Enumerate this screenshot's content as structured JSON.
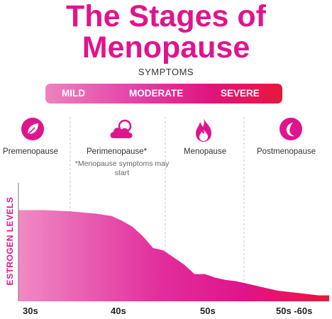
{
  "title_line1": "The Stages of",
  "title_line2": "Menopause",
  "symptoms": {
    "label": "SYMPTOMS",
    "levels": [
      "MILD",
      "MODERATE",
      "SEVERE"
    ]
  },
  "stages": [
    {
      "name": "Premenopause",
      "icon": "leaf-icon"
    },
    {
      "name": "Perimenopause*",
      "icon": "cloud-sun-icon",
      "note": "*Menopause symptoms may start"
    },
    {
      "name": "Menopause",
      "icon": "flame-icon"
    },
    {
      "name": "Postmenopause",
      "icon": "moon-icon"
    }
  ],
  "colors": {
    "accent": "#e0148c",
    "light_pink": "#ef82be",
    "red": "#e8173c"
  },
  "chart_data": {
    "type": "area",
    "ylabel": "ESTROGEN LEVELS",
    "xlabel": "",
    "x_ticks": [
      "30s",
      "40s",
      "50s",
      "50s -60s"
    ],
    "x": [
      0,
      0.5,
      1,
      1.5,
      1.8,
      2,
      2.2,
      2.4,
      2.6,
      2.8,
      3,
      3.2,
      3.4,
      3.6,
      3.8,
      4,
      4.2,
      4.4,
      4.6,
      4.8,
      5,
      5.2,
      5.4,
      5.6,
      5.8,
      6
    ],
    "values": [
      77,
      77,
      76,
      74,
      72,
      68,
      63,
      55,
      45,
      43,
      37,
      31,
      23,
      23,
      20,
      18,
      17,
      15,
      13,
      11,
      9,
      8,
      7,
      6,
      5,
      5
    ],
    "ylim": [
      0,
      100
    ],
    "xlim": [
      0,
      6
    ],
    "grid": false
  }
}
